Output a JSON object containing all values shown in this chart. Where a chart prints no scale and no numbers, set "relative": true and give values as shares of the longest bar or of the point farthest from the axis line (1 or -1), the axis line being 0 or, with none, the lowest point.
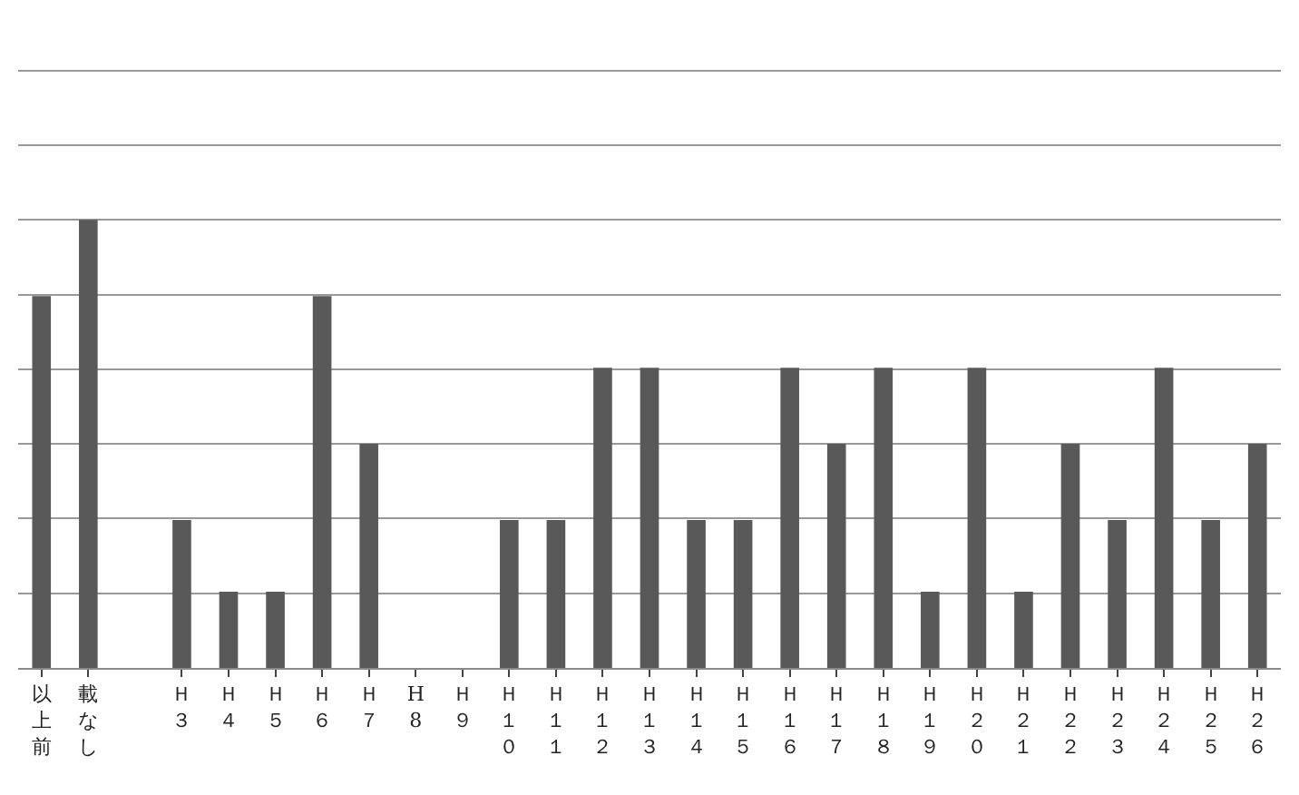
{
  "chart_data": {
    "type": "bar",
    "relative": true,
    "grid": "y",
    "color": "#595959",
    "categories": [
      "以上前",
      "載なし",
      null,
      "Ｈ３",
      "Ｈ４",
      "Ｈ５",
      "Ｈ６",
      "Ｈ７",
      "H8",
      "Ｈ９",
      "Ｈ１０",
      "Ｈ１１",
      "Ｈ１２",
      "Ｈ１３",
      "Ｈ１４",
      "Ｈ１５",
      "Ｈ１６",
      "Ｈ１７",
      "Ｈ１８",
      "Ｈ１９",
      "Ｈ２０",
      "Ｈ２１",
      "Ｈ２２",
      "Ｈ２３",
      "Ｈ２４",
      "Ｈ２５",
      "Ｈ２６"
    ],
    "values": [
      0.83,
      1,
      null,
      0.33,
      0.17,
      0.17,
      0.83,
      0.5,
      0,
      0,
      0.33,
      0.33,
      0.67,
      0.67,
      0.33,
      0.33,
      0.67,
      0.5,
      0.67,
      0.17,
      0.67,
      0.17,
      0.5,
      0.33,
      0.67,
      0.33,
      0.5
    ]
  }
}
